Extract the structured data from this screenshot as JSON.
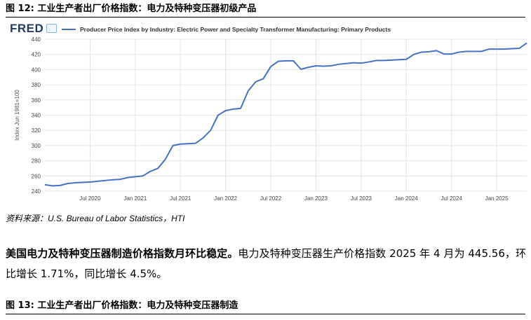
{
  "figure12": {
    "title": "图 12: 工业生产者出厂价格指数：电力及特种变压器初级产品"
  },
  "fred": {
    "logo": "FRED"
  },
  "chart_data": {
    "type": "line",
    "legend": "Producer Price Index by Industry: Electric Power and Specialty Transformer Manufacturing: Primary Products",
    "ylabel": "Index Jun 1981=100",
    "xlabel": "",
    "ylim": [
      240,
      440
    ],
    "yticks": [
      240,
      260,
      280,
      300,
      320,
      340,
      360,
      380,
      400,
      420,
      440
    ],
    "xlim": [
      "2020-01",
      "2025-05"
    ],
    "xticks": [
      {
        "x": "2020-07",
        "label": "Jul 2020"
      },
      {
        "x": "2021-01",
        "label": "Jan 2021"
      },
      {
        "x": "2021-07",
        "label": "Jul 2021"
      },
      {
        "x": "2022-01",
        "label": "Jan 2022"
      },
      {
        "x": "2022-07",
        "label": "Jul 2022"
      },
      {
        "x": "2023-01",
        "label": "Jan 2023"
      },
      {
        "x": "2023-07",
        "label": "Jul 2023"
      },
      {
        "x": "2024-01",
        "label": "Jan 2024"
      },
      {
        "x": "2024-07",
        "label": "Jul 2024"
      },
      {
        "x": "2025-01",
        "label": "Jan 2025"
      }
    ],
    "grid": true,
    "series": [
      {
        "color": "#4472c4",
        "points": [
          [
            "2020-01",
            248.5
          ],
          [
            "2020-02",
            247
          ],
          [
            "2020-03",
            247.5
          ],
          [
            "2020-04",
            250
          ],
          [
            "2020-05",
            251
          ],
          [
            "2020-06",
            251.5
          ],
          [
            "2020-07",
            252
          ],
          [
            "2020-08",
            253
          ],
          [
            "2020-09",
            254
          ],
          [
            "2020-10",
            255
          ],
          [
            "2020-11",
            255.5
          ],
          [
            "2020-12",
            258
          ],
          [
            "2021-01",
            259
          ],
          [
            "2021-02",
            260
          ],
          [
            "2021-03",
            266
          ],
          [
            "2021-04",
            270
          ],
          [
            "2021-05",
            282
          ],
          [
            "2021-06",
            300
          ],
          [
            "2021-07",
            302
          ],
          [
            "2021-08",
            302.5
          ],
          [
            "2021-09",
            303
          ],
          [
            "2021-10",
            310
          ],
          [
            "2021-11",
            320
          ],
          [
            "2021-12",
            340
          ],
          [
            "2022-01",
            346
          ],
          [
            "2022-02",
            348
          ],
          [
            "2022-03",
            349
          ],
          [
            "2022-04",
            372
          ],
          [
            "2022-05",
            384
          ],
          [
            "2022-06",
            388
          ],
          [
            "2022-07",
            404
          ],
          [
            "2022-08",
            411
          ],
          [
            "2022-09",
            411.5
          ],
          [
            "2022-10",
            411.5
          ],
          [
            "2022-11",
            400.5
          ],
          [
            "2022-12",
            403
          ],
          [
            "2023-01",
            405
          ],
          [
            "2023-02",
            404.5
          ],
          [
            "2023-03",
            405
          ],
          [
            "2023-04",
            407
          ],
          [
            "2023-05",
            408
          ],
          [
            "2023-06",
            409
          ],
          [
            "2023-07",
            408.5
          ],
          [
            "2023-08",
            410
          ],
          [
            "2023-09",
            412
          ],
          [
            "2023-10",
            412
          ],
          [
            "2023-11",
            412.5
          ],
          [
            "2023-12",
            413
          ],
          [
            "2024-01",
            413.5
          ],
          [
            "2024-02",
            420
          ],
          [
            "2024-03",
            423
          ],
          [
            "2024-04",
            423.5
          ],
          [
            "2024-05",
            425
          ],
          [
            "2024-06",
            420.5
          ],
          [
            "2024-07",
            420.5
          ],
          [
            "2024-08",
            423
          ],
          [
            "2024-09",
            424
          ],
          [
            "2024-10",
            424
          ],
          [
            "2024-11",
            424
          ],
          [
            "2024-12",
            427
          ],
          [
            "2025-01",
            427
          ],
          [
            "2025-02",
            427
          ],
          [
            "2025-03",
            427.5
          ],
          [
            "2025-04",
            428
          ],
          [
            "2025-05",
            435
          ]
        ]
      }
    ]
  },
  "source": "资料来源：U.S. Bureau of Labor Statistics，HTI",
  "paragraph": {
    "lead": "美国电力及特种变压器制造价格指数月环比稳定。",
    "body": "电力及特种变压器生产价格指数 2025 年 4 月为 445.56，环比增长 1.71%，同比增长 4.5%。"
  },
  "figure13": {
    "title": "图 13: 工业生产者出厂价格指数：电力及特种变压器制造"
  }
}
